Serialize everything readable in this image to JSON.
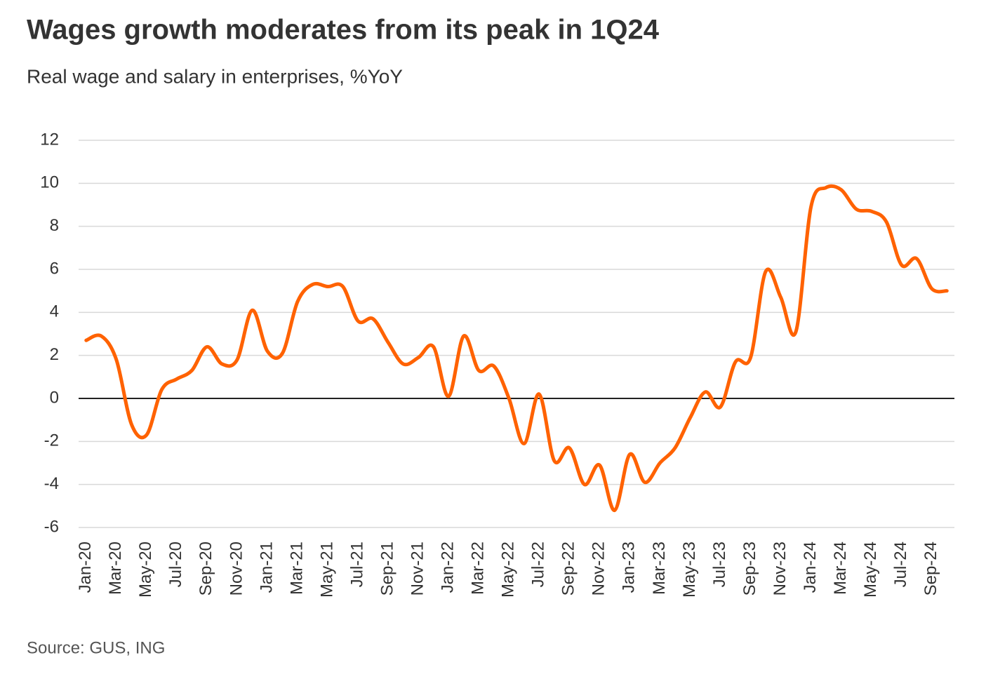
{
  "chart_data": {
    "type": "line",
    "title": "Wages growth moderates from its peak in 1Q24",
    "subtitle": "Real wage and salary in enterprises, %YoY",
    "source": "Source: GUS, ING",
    "categories": [
      "Jan-20",
      null,
      "Mar-20",
      null,
      "May-20",
      null,
      "Jul-20",
      null,
      "Sep-20",
      null,
      "Nov-20",
      null,
      "Jan-21",
      null,
      "Mar-21",
      null,
      "May-21",
      null,
      "Jul-21",
      null,
      "Sep-21",
      null,
      "Nov-21",
      null,
      "Jan-22",
      null,
      "Mar-22",
      null,
      "May-22",
      null,
      "Jul-22",
      null,
      "Sep-22",
      null,
      "Nov-22",
      null,
      "Jan-23",
      null,
      "Mar-23",
      null,
      "May-23",
      null,
      "Jul-23",
      null,
      "Sep-23",
      null,
      "Nov-23",
      null,
      "Jan-24",
      null,
      "Mar-24",
      null,
      "May-24",
      null,
      "Jul-24",
      null,
      "Sep-24",
      null
    ],
    "series": [
      {
        "name": "Real wage and salary",
        "color": "#ff6200",
        "values": [
          2.7,
          2.9,
          1.8,
          -1.2,
          -1.7,
          0.4,
          0.9,
          1.3,
          2.4,
          1.6,
          1.8,
          4.1,
          2.2,
          2.1,
          4.5,
          5.3,
          5.2,
          5.2,
          3.6,
          3.7,
          2.6,
          1.6,
          1.9,
          2.4,
          0.1,
          2.9,
          1.3,
          1.5,
          0,
          -2.1,
          0.2,
          -2.9,
          -2.3,
          -4.0,
          -3.1,
          -5.2,
          -2.6,
          -3.9,
          -3.0,
          -2.3,
          -0.9,
          0.3,
          -0.4,
          1.7,
          1.9,
          5.9,
          4.7,
          3.1,
          8.9,
          9.8,
          9.7,
          8.8,
          8.7,
          8.2,
          6.2,
          6.5,
          5.1,
          5.0
        ]
      }
    ],
    "ylim": [
      -6,
      12
    ],
    "yticks": [
      -6,
      -4,
      -2,
      0,
      2,
      4,
      6,
      8,
      10,
      12
    ],
    "grid": true
  }
}
